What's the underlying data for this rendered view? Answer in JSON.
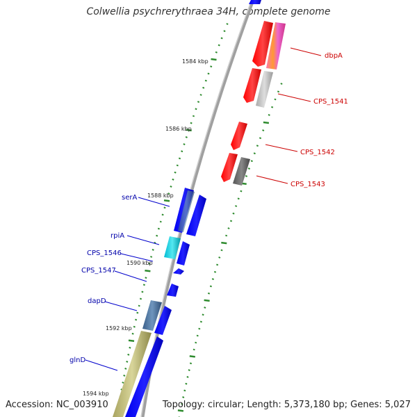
{
  "title": "Colwellia psychrerythraea 34H, complete genome",
  "footer": {
    "accession": "Accession: NC_003910",
    "topology": "Topology: circular; Length: 5,373,180 bp; Genes: 5,027"
  },
  "scale_labels": [
    "1584 kbp",
    "1586 kbp",
    "1588 kbp",
    "1590 kbp",
    "1592 kbp",
    "1594 kbp"
  ],
  "gene_labels": {
    "dbpA": "dbpA",
    "CPS_1541": "CPS_1541",
    "CPS_1542": "CPS_1542",
    "CPS_1543": "CPS_1543",
    "serA": "serA",
    "rpiA": "rpiA",
    "CPS_1546": "CPS_1546",
    "CPS_1547": "CPS_1547",
    "dapD": "dapD",
    "glnD": "glnD"
  },
  "colors": {
    "forward_label": "#cc0000",
    "reverse_label": "#0000aa",
    "forward_feature": "#ff0000",
    "reverse_feature": "#0000ff",
    "tick": "#2e8b2e",
    "backbone": "#999999"
  }
}
